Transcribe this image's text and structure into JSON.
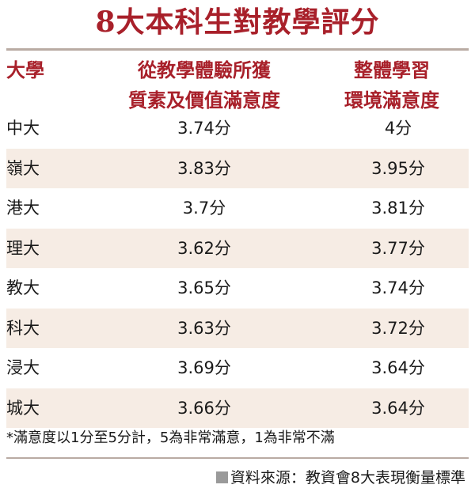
{
  "title": "8大本科生對教學評分",
  "headers": {
    "university": "大學",
    "col1_line1": "從教學體驗所獲",
    "col1_line2": "質素及價值滿意度",
    "col2_line1": "整體學習",
    "col2_line2": "環境滿意度"
  },
  "rows": [
    {
      "uni": "中大",
      "v1": "3.74分",
      "v2": "4分"
    },
    {
      "uni": "嶺大",
      "v1": "3.83分",
      "v2": "3.95分"
    },
    {
      "uni": "港大",
      "v1": "3.7分",
      "v2": "3.81分"
    },
    {
      "uni": "理大",
      "v1": "3.62分",
      "v2": "3.77分"
    },
    {
      "uni": "教大",
      "v1": "3.65分",
      "v2": "3.74分"
    },
    {
      "uni": "科大",
      "v1": "3.63分",
      "v2": "3.72分"
    },
    {
      "uni": "浸大",
      "v1": "3.69分",
      "v2": "3.64分"
    },
    {
      "uni": "城大",
      "v1": "3.66分",
      "v2": "3.64分"
    }
  ],
  "note": "*滿意度以1分至5分計，5為非常滿意，1為非常不滿",
  "source": "資料來源：教資會8大表現衡量標準",
  "colors": {
    "accent": "#a8202a",
    "row_shade": "#f6ece4",
    "rule": "#b9aba3"
  },
  "chart_data": {
    "type": "table",
    "title": "8大本科生對教學評分",
    "columns": [
      "大學",
      "從教學體驗所獲質素及價值滿意度",
      "整體學習環境滿意度"
    ],
    "categories": [
      "中大",
      "嶺大",
      "港大",
      "理大",
      "教大",
      "科大",
      "浸大",
      "城大"
    ],
    "series": [
      {
        "name": "從教學體驗所獲質素及價值滿意度",
        "values": [
          3.74,
          3.83,
          3.7,
          3.62,
          3.65,
          3.63,
          3.69,
          3.66
        ]
      },
      {
        "name": "整體學習環境滿意度",
        "values": [
          4,
          3.95,
          3.81,
          3.77,
          3.74,
          3.72,
          3.64,
          3.64
        ]
      }
    ]
  }
}
